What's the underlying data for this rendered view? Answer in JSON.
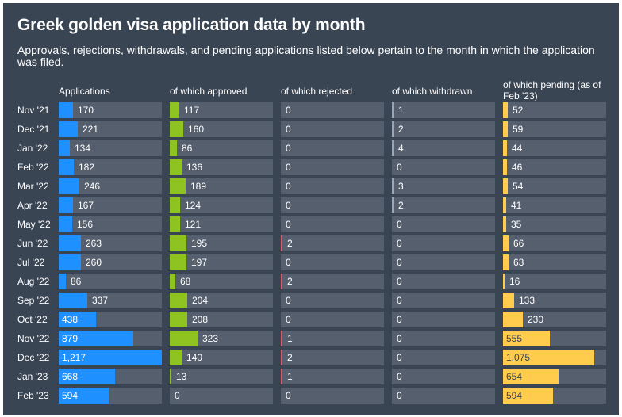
{
  "title": "Greek golden visa application data by month",
  "subtitle": "Approvals, rejections, withdrawals, and pending applications listed below pertain to the month in which the application was filed.",
  "chart_data": {
    "type": "table",
    "categories": [
      "Nov '21",
      "Dec '21",
      "Jan '22",
      "Feb '22",
      "Mar '22",
      "Apr '22",
      "May '22",
      "Jun '22",
      "Jul '22",
      "Aug '22",
      "Sep '22",
      "Oct '22",
      "Nov '22",
      "Dec '22",
      "Jan '23",
      "Feb '23"
    ],
    "series": [
      {
        "name": "Applications",
        "color": "#1e90ff",
        "values": [
          170,
          221,
          134,
          182,
          246,
          167,
          156,
          263,
          260,
          86,
          337,
          438,
          879,
          1217,
          668,
          594
        ],
        "labels": [
          "170",
          "221",
          "134",
          "182",
          "246",
          "167",
          "156",
          "263",
          "260",
          "86",
          "337",
          "438",
          "879",
          "1,217",
          "668",
          "594"
        ]
      },
      {
        "name": "of which approved",
        "color": "#8fc31f",
        "values": [
          117,
          160,
          86,
          136,
          189,
          124,
          121,
          195,
          197,
          68,
          204,
          208,
          323,
          140,
          13,
          0
        ],
        "labels": [
          "117",
          "160",
          "86",
          "136",
          "189",
          "124",
          "121",
          "195",
          "197",
          "68",
          "204",
          "208",
          "323",
          "140",
          "13",
          "0"
        ]
      },
      {
        "name": "of which rejected",
        "color": "#e05a6b",
        "values": [
          0,
          0,
          0,
          0,
          0,
          0,
          0,
          2,
          0,
          2,
          0,
          0,
          1,
          2,
          1,
          0
        ],
        "labels": [
          "0",
          "0",
          "0",
          "0",
          "0",
          "0",
          "0",
          "2",
          "0",
          "2",
          "0",
          "0",
          "1",
          "2",
          "1",
          "0"
        ]
      },
      {
        "name": "of which withdrawn",
        "color": "#9aa6b8",
        "values": [
          1,
          2,
          4,
          0,
          3,
          2,
          0,
          0,
          0,
          0,
          0,
          0,
          0,
          0,
          0,
          0
        ],
        "labels": [
          "1",
          "2",
          "4",
          "0",
          "3",
          "2",
          "0",
          "0",
          "0",
          "0",
          "0",
          "0",
          "0",
          "0",
          "0",
          "0"
        ]
      },
      {
        "name": "of which pending (as of Feb '23)",
        "color": "#ffcc4d",
        "values": [
          52,
          59,
          44,
          46,
          54,
          41,
          35,
          66,
          63,
          16,
          133,
          230,
          555,
          1075,
          654,
          594
        ],
        "labels": [
          "52",
          "59",
          "44",
          "46",
          "54",
          "41",
          "35",
          "66",
          "63",
          "16",
          "133",
          "230",
          "555",
          "1,075",
          "654",
          "594"
        ]
      }
    ],
    "scale_max": 1217
  }
}
